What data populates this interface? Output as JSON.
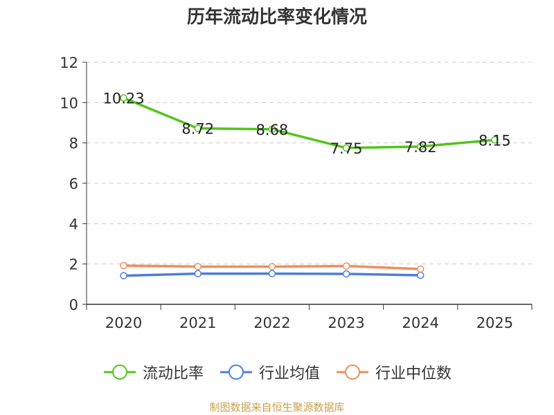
{
  "chart_data": {
    "type": "line",
    "title": "历年流动比率变化情况",
    "categories": [
      "2020",
      "2021",
      "2022",
      "2023",
      "2024",
      "2025"
    ],
    "ylim": [
      0,
      12
    ],
    "yticks": [
      0,
      2,
      4,
      6,
      8,
      10,
      12
    ],
    "grid": true,
    "legend_position": "bottom",
    "series": [
      {
        "name": "流动比率",
        "color": "#52c41a",
        "values": [
          10.23,
          8.72,
          8.68,
          7.75,
          7.82,
          8.15
        ],
        "labels": [
          "10.23",
          "8.72",
          "8.68",
          "7.75",
          "7.82",
          "8.15"
        ]
      },
      {
        "name": "行业均值",
        "color": "#4a7fdb",
        "values": [
          1.42,
          1.52,
          1.52,
          1.51,
          1.44,
          null
        ]
      },
      {
        "name": "行业中位数",
        "color": "#f28c5a",
        "values": [
          1.92,
          1.87,
          1.87,
          1.9,
          1.75,
          null
        ]
      }
    ]
  },
  "source": "制图数据来自恒生聚源数据库"
}
